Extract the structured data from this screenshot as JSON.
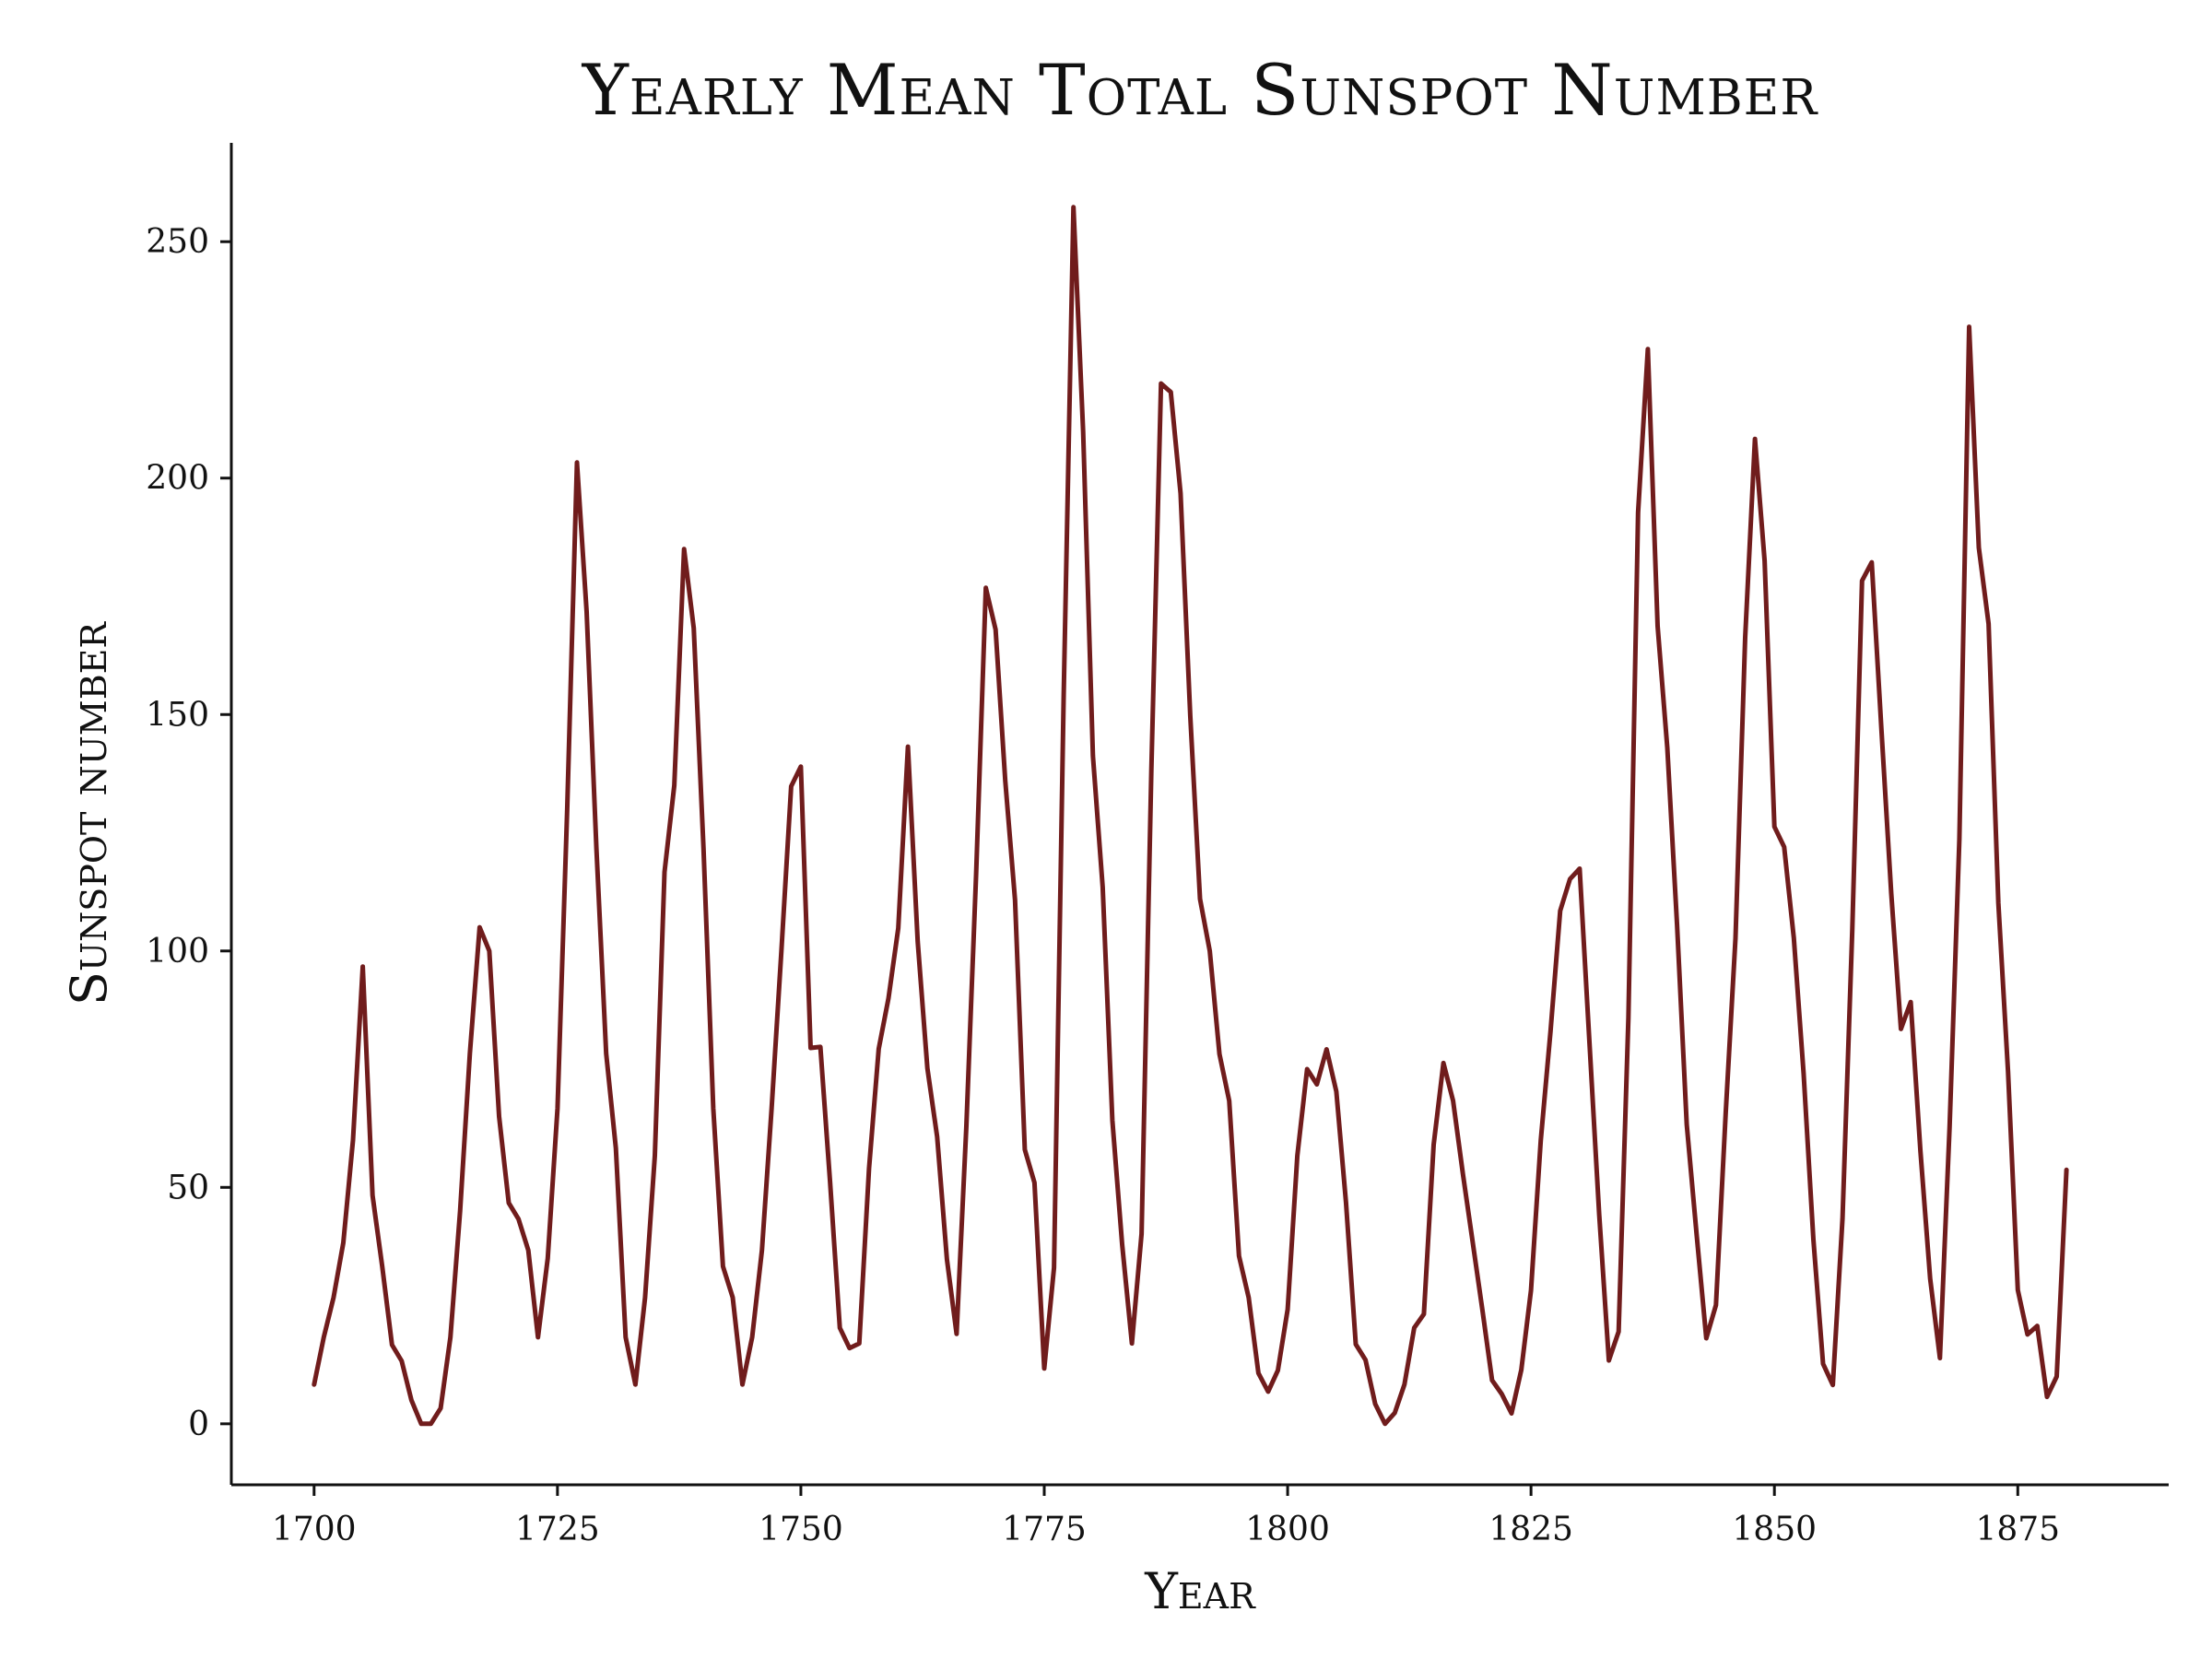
{
  "chart_data": {
    "type": "line",
    "title": "Yearly Mean Total Sunspot Number",
    "xlabel": "Year",
    "ylabel": "Sunspot number",
    "xlim": [
      1691.5,
      1890.5
    ],
    "ylim": [
      -12.9,
      270.9
    ],
    "xticks": [
      1700,
      1725,
      1750,
      1775,
      1800,
      1825,
      1850,
      1875
    ],
    "yticks": [
      0,
      50,
      100,
      150,
      200,
      250
    ],
    "grid": false,
    "color": "#701c1c",
    "series": [
      {
        "x": [
          1700,
          1701,
          1702,
          1703,
          1704,
          1705,
          1706,
          1707,
          1708,
          1709,
          1710,
          1711,
          1712,
          1713,
          1714,
          1715,
          1716,
          1717,
          1718,
          1719,
          1720,
          1721,
          1722,
          1723,
          1724,
          1725,
          1726,
          1727,
          1728,
          1729,
          1730,
          1731,
          1732,
          1733,
          1734,
          1735,
          1736,
          1737,
          1738,
          1739,
          1740,
          1741,
          1742,
          1743,
          1744,
          1745,
          1746,
          1747,
          1748,
          1749,
          1750,
          1751,
          1752,
          1753,
          1754,
          1755,
          1756,
          1757,
          1758,
          1759,
          1760,
          1761,
          1762,
          1763,
          1764,
          1765,
          1766,
          1767,
          1768,
          1769,
          1770,
          1771,
          1772,
          1773,
          1774,
          1775,
          1776,
          1777,
          1778,
          1779,
          1780,
          1781,
          1782,
          1783,
          1784,
          1785,
          1786,
          1787,
          1788,
          1789,
          1790,
          1791,
          1792,
          1793,
          1794,
          1795,
          1796,
          1797,
          1798,
          1799,
          1800,
          1801,
          1802,
          1803,
          1804,
          1805,
          1806,
          1807,
          1808,
          1809,
          1810,
          1811,
          1812,
          1813,
          1814,
          1815,
          1816,
          1817,
          1818,
          1819,
          1820,
          1821,
          1822,
          1823,
          1824,
          1825,
          1826,
          1827,
          1828,
          1829,
          1830,
          1831,
          1832,
          1833,
          1834,
          1835,
          1836,
          1837,
          1838,
          1839,
          1840,
          1841,
          1842,
          1843,
          1844,
          1845,
          1846,
          1847,
          1848,
          1849,
          1850,
          1851,
          1852,
          1853,
          1854,
          1855,
          1856,
          1857,
          1858,
          1859,
          1860,
          1861,
          1862,
          1863,
          1864,
          1865,
          1866,
          1867,
          1868,
          1869,
          1870,
          1871,
          1872,
          1873,
          1874,
          1875,
          1876,
          1877,
          1878,
          1879,
          1880
        ],
        "values": [
          8.3,
          18.3,
          26.7,
          38.3,
          60.0,
          96.7,
          48.3,
          33.3,
          16.7,
          13.3,
          5.0,
          0.0,
          0.0,
          3.3,
          18.3,
          45.0,
          78.3,
          105.0,
          100.0,
          65.0,
          46.7,
          43.3,
          36.7,
          18.3,
          35.0,
          66.7,
          130.0,
          203.3,
          171.7,
          121.7,
          78.3,
          58.3,
          18.3,
          8.3,
          26.7,
          56.7,
          116.7,
          135.0,
          185.0,
          168.3,
          121.7,
          66.7,
          33.3,
          26.7,
          8.3,
          18.3,
          36.7,
          66.7,
          100.0,
          134.8,
          139.0,
          79.5,
          79.7,
          51.2,
          20.3,
          16.0,
          17.0,
          54.0,
          79.3,
          90.0,
          104.8,
          143.2,
          102.0,
          75.2,
          60.7,
          34.8,
          19.0,
          63.0,
          116.3,
          176.8,
          168.0,
          136.0,
          110.8,
          58.0,
          51.0,
          11.7,
          33.0,
          154.2,
          257.3,
          209.8,
          141.3,
          113.5,
          64.2,
          38.0,
          17.0,
          40.2,
          138.2,
          220.0,
          218.2,
          196.8,
          149.8,
          111.0,
          100.0,
          78.2,
          68.3,
          35.5,
          26.7,
          10.7,
          6.8,
          11.3,
          24.2,
          56.7,
          75.0,
          71.8,
          79.2,
          70.3,
          46.8,
          16.8,
          13.5,
          4.2,
          0.0,
          2.3,
          8.3,
          20.3,
          23.2,
          59.0,
          76.3,
          68.3,
          52.9,
          38.5,
          24.2,
          9.2,
          6.3,
          2.2,
          11.4,
          28.2,
          59.9,
          83.0,
          108.5,
          115.2,
          117.4,
          80.8,
          44.3,
          13.4,
          19.5,
          85.8,
          192.7,
          227.3,
          168.7,
          143.0,
          105.5,
          63.3,
          40.3,
          18.1,
          25.1,
          65.8,
          102.7,
          166.3,
          208.3,
          182.5,
          126.3,
          122.0,
          102.7,
          74.1,
          39.0,
          12.7,
          8.2,
          43.4,
          104.4,
          178.3,
          182.2,
          146.6,
          112.1,
          83.5,
          89.2,
          57.8,
          30.7,
          13.9,
          62.8,
          123.6,
          232.0,
          185.3,
          169.2,
          110.1,
          74.5,
          28.3,
          18.9,
          20.7,
          5.7,
          10.0,
          53.7
        ]
      }
    ]
  }
}
